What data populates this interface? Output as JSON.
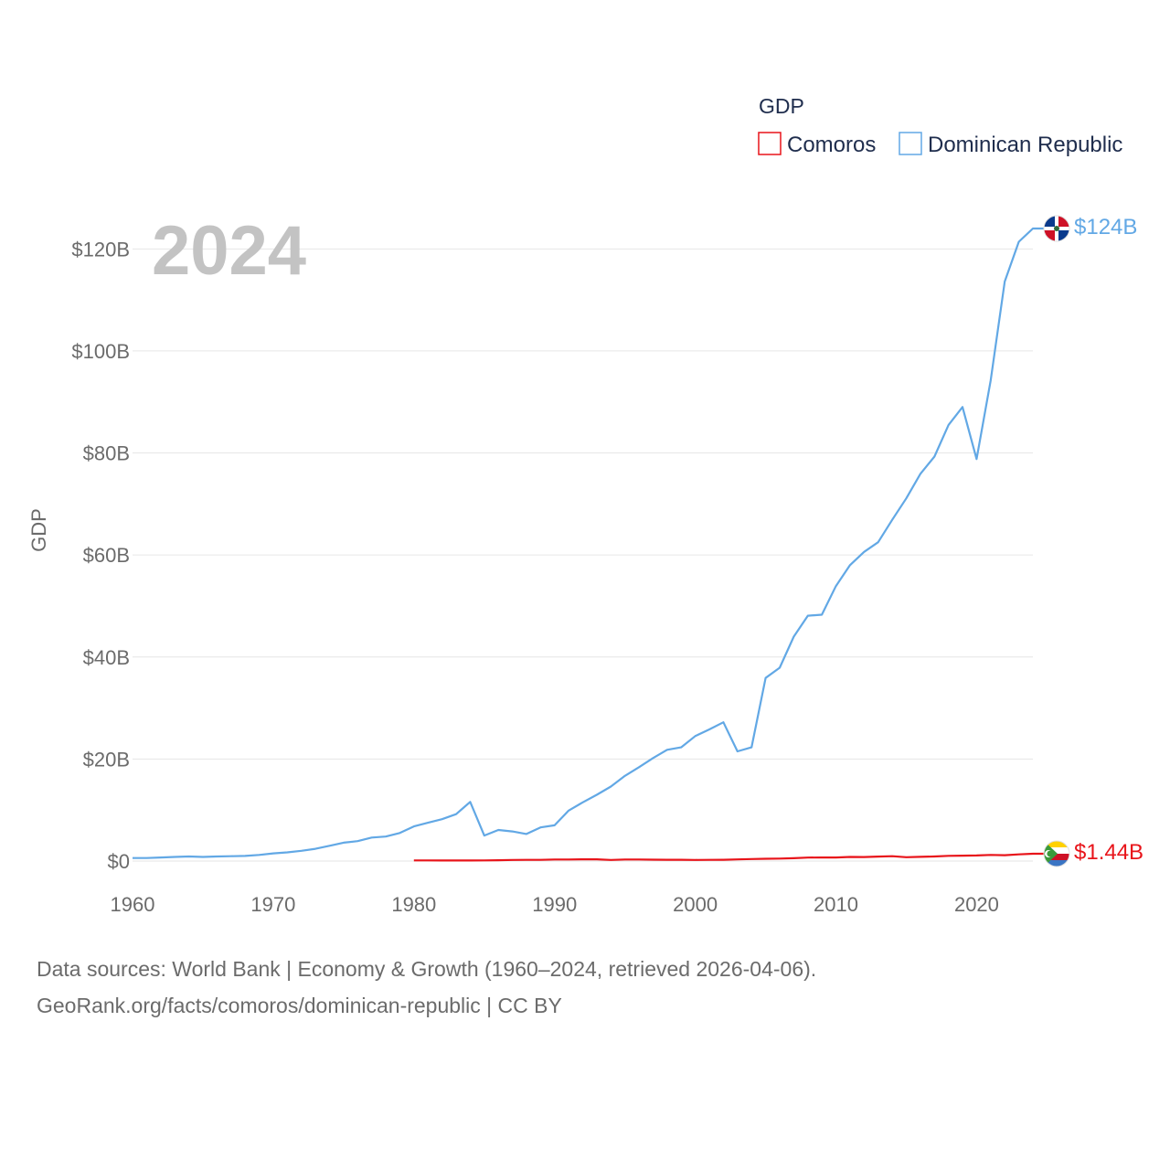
{
  "chart_data": {
    "type": "line",
    "legend_title": "GDP",
    "ylabel": "GDP",
    "current_year": "2024",
    "xlim": [
      1960,
      2024
    ],
    "ylim": [
      0,
      124
    ],
    "x_ticks": [
      1960,
      1970,
      1980,
      1990,
      2000,
      2010,
      2020
    ],
    "y_ticks": [
      0,
      20,
      40,
      60,
      80,
      100,
      120
    ],
    "y_tick_labels": [
      "$0",
      "$20B",
      "$40B",
      "$60B",
      "$80B",
      "$100B",
      "$120B"
    ],
    "series": [
      {
        "name": "Comoros",
        "color": "#e8141a",
        "end_label": "$1.44B",
        "flag_icon": "comoros-flag-icon",
        "x": [
          1980,
          1981,
          1982,
          1983,
          1984,
          1985,
          1986,
          1987,
          1988,
          1989,
          1990,
          1991,
          1992,
          1993,
          1994,
          1995,
          1996,
          1997,
          1998,
          1999,
          2000,
          2001,
          2002,
          2003,
          2004,
          2005,
          2006,
          2007,
          2008,
          2009,
          2010,
          2011,
          2012,
          2013,
          2014,
          2015,
          2016,
          2017,
          2018,
          2019,
          2020,
          2021,
          2022,
          2023,
          2024
        ],
        "values": [
          0.12,
          0.12,
          0.11,
          0.11,
          0.11,
          0.12,
          0.17,
          0.22,
          0.24,
          0.23,
          0.3,
          0.3,
          0.34,
          0.34,
          0.22,
          0.3,
          0.3,
          0.26,
          0.25,
          0.25,
          0.22,
          0.23,
          0.25,
          0.32,
          0.4,
          0.45,
          0.48,
          0.55,
          0.68,
          0.69,
          0.7,
          0.8,
          0.78,
          0.87,
          0.95,
          0.76,
          0.83,
          0.89,
          1.02,
          1.05,
          1.1,
          1.2,
          1.15,
          1.3,
          1.44
        ]
      },
      {
        "name": "Dominican Republic",
        "color": "#62a8e5",
        "end_label": "$124B",
        "flag_icon": "dominican-republic-flag-icon",
        "x": [
          1960,
          1961,
          1962,
          1963,
          1964,
          1965,
          1966,
          1967,
          1968,
          1969,
          1970,
          1971,
          1972,
          1973,
          1974,
          1975,
          1976,
          1977,
          1978,
          1979,
          1980,
          1981,
          1982,
          1983,
          1984,
          1985,
          1986,
          1987,
          1988,
          1989,
          1990,
          1991,
          1992,
          1993,
          1994,
          1995,
          1996,
          1997,
          1998,
          1999,
          2000,
          2001,
          2002,
          2003,
          2004,
          2005,
          2006,
          2007,
          2008,
          2009,
          2010,
          2011,
          2012,
          2013,
          2014,
          2015,
          2016,
          2017,
          2018,
          2019,
          2020,
          2021,
          2022,
          2023,
          2024
        ],
        "values": [
          0.6,
          0.6,
          0.7,
          0.8,
          0.9,
          0.8,
          0.9,
          0.95,
          1.0,
          1.2,
          1.5,
          1.7,
          2.0,
          2.4,
          3.0,
          3.6,
          3.9,
          4.6,
          4.8,
          5.5,
          6.8,
          7.5,
          8.2,
          9.2,
          11.6,
          5.0,
          6.1,
          5.8,
          5.3,
          6.6,
          7.0,
          9.9,
          11.5,
          13.0,
          14.6,
          16.7,
          18.4,
          20.2,
          21.8,
          22.3,
          24.5,
          25.8,
          27.2,
          21.5,
          22.3,
          35.9,
          37.9,
          44.0,
          48.1,
          48.3,
          53.9,
          58.0,
          60.6,
          62.5,
          66.9,
          71.1,
          75.9,
          79.3,
          85.5,
          89.0,
          78.8,
          94.2,
          113.6,
          121.4,
          124.0
        ]
      }
    ]
  },
  "source": {
    "line1": "Data sources: World Bank | Economy & Growth (1960–2024, retrieved 2026-04-06).",
    "line2": "GeoRank.org/facts/comoros/dominican-republic | CC BY"
  }
}
